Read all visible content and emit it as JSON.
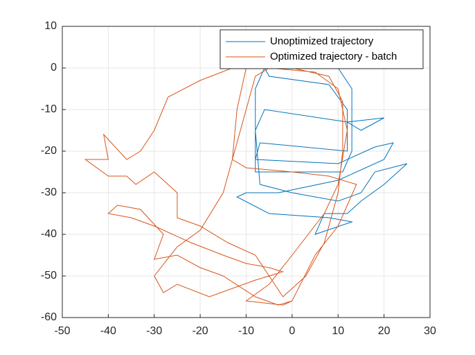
{
  "chart_data": {
    "type": "line",
    "xlim": [
      -50,
      30
    ],
    "xticks": [
      -50,
      -40,
      -30,
      -20,
      -10,
      0,
      10,
      20,
      30
    ],
    "ylim": [
      -60,
      10
    ],
    "yticks": [
      -60,
      -50,
      -40,
      -30,
      -20,
      -10,
      0,
      10
    ],
    "grid": true,
    "legend": "top-right",
    "series": [
      {
        "name": "Unoptimized trajectory",
        "color": "#0072BD",
        "x": [
          -6,
          10,
          13,
          13,
          11,
          -8,
          -8,
          -6,
          -5,
          8,
          12,
          12,
          -7,
          -8,
          10,
          18,
          22,
          20,
          10,
          -3,
          -10,
          -12,
          -5,
          8,
          13,
          5,
          7,
          12,
          15,
          20,
          25,
          18,
          15,
          10,
          0,
          -7,
          -8,
          -6,
          12,
          20,
          15,
          12
        ],
        "values": [
          0,
          0,
          -5,
          -20,
          -25,
          -25,
          -5,
          0,
          -2,
          -4,
          -10,
          -20,
          -18,
          -22,
          -23,
          -19,
          -18,
          -22,
          -27,
          -30,
          -30,
          -31,
          -35,
          -36,
          -37,
          -40,
          -35,
          -35,
          -32,
          -28,
          -23,
          -25,
          -30,
          -32,
          -30,
          -28,
          -15,
          -10,
          -13,
          -12,
          -15,
          -13
        ]
      },
      {
        "name": "Optimized trajectory - batch",
        "color": "#D95319",
        "x": [
          -8,
          -13,
          -20,
          -27,
          -30,
          -33,
          -36,
          -41,
          -40,
          -45,
          -40,
          -36,
          -34,
          -30,
          -25,
          -25,
          -20,
          -14,
          -8,
          -5,
          -2,
          3,
          7,
          10,
          11,
          11,
          8,
          0,
          -10,
          -12,
          -13,
          -10,
          0,
          8,
          14,
          10,
          5,
          0,
          -3,
          -8,
          -15,
          -20,
          -25,
          -30,
          -28,
          -33,
          -38,
          -40,
          -35,
          -30,
          -22,
          -15,
          -10,
          -5,
          -2,
          -8,
          -18,
          -25,
          -28,
          -30,
          -25,
          -20,
          -15,
          -10,
          -8,
          -5,
          5,
          10,
          12,
          10,
          7,
          0,
          -5,
          -10,
          -2,
          0
        ],
        "values": [
          0,
          0,
          -3,
          -7,
          -15,
          -20,
          -22,
          -16,
          -22,
          -22,
          -26,
          -26,
          -28,
          -25,
          -30,
          -36,
          -38,
          -42,
          -45,
          -50,
          -55,
          -50,
          -42,
          -30,
          -20,
          -8,
          -2,
          0,
          0,
          -10,
          -22,
          -24,
          -25,
          -26,
          -28,
          -38,
          -45,
          -56,
          -57,
          -55,
          -50,
          -48,
          -45,
          -46,
          -40,
          -34,
          -33,
          -35,
          -36,
          -38,
          -42,
          -45,
          -47,
          -48,
          -49,
          -51,
          -55,
          -52,
          -54,
          -50,
          -43,
          -39,
          -30,
          -10,
          -2,
          0,
          -1,
          -5,
          -15,
          -28,
          -35,
          -45,
          -52,
          -56,
          -57,
          -56
        ]
      }
    ]
  }
}
